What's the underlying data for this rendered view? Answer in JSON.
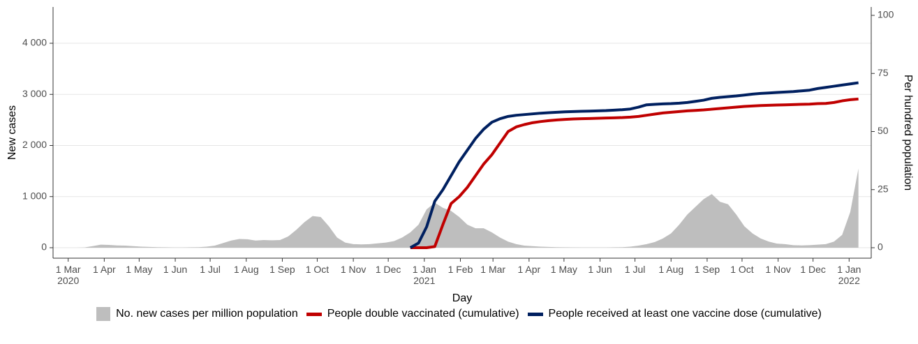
{
  "chart_data": {
    "type": "area-line",
    "x_label": "Day",
    "y_label": "New cases",
    "y2_label": "Per hundred population",
    "x": [
      "2020-03-01",
      "2020-03-08",
      "2020-03-15",
      "2020-03-22",
      "2020-03-29",
      "2020-04-05",
      "2020-04-12",
      "2020-04-19",
      "2020-04-26",
      "2020-05-03",
      "2020-05-10",
      "2020-05-17",
      "2020-05-24",
      "2020-05-31",
      "2020-06-07",
      "2020-06-14",
      "2020-06-21",
      "2020-06-28",
      "2020-07-05",
      "2020-07-12",
      "2020-07-19",
      "2020-07-26",
      "2020-08-02",
      "2020-08-09",
      "2020-08-16",
      "2020-08-23",
      "2020-08-30",
      "2020-09-06",
      "2020-09-13",
      "2020-09-20",
      "2020-09-27",
      "2020-10-04",
      "2020-10-11",
      "2020-10-18",
      "2020-10-25",
      "2020-11-01",
      "2020-11-08",
      "2020-11-15",
      "2020-11-22",
      "2020-11-29",
      "2020-12-06",
      "2020-12-13",
      "2020-12-20",
      "2020-12-27",
      "2021-01-03",
      "2021-01-10",
      "2021-01-17",
      "2021-01-24",
      "2021-01-31",
      "2021-02-07",
      "2021-02-14",
      "2021-02-21",
      "2021-02-28",
      "2021-03-07",
      "2021-03-14",
      "2021-03-21",
      "2021-03-28",
      "2021-04-04",
      "2021-04-11",
      "2021-04-18",
      "2021-04-25",
      "2021-05-02",
      "2021-05-09",
      "2021-05-16",
      "2021-05-23",
      "2021-05-30",
      "2021-06-06",
      "2021-06-13",
      "2021-06-20",
      "2021-06-27",
      "2021-07-04",
      "2021-07-11",
      "2021-07-18",
      "2021-07-25",
      "2021-08-01",
      "2021-08-08",
      "2021-08-15",
      "2021-08-22",
      "2021-08-29",
      "2021-09-05",
      "2021-09-12",
      "2021-09-19",
      "2021-09-26",
      "2021-10-03",
      "2021-10-10",
      "2021-10-17",
      "2021-10-24",
      "2021-10-31",
      "2021-11-07",
      "2021-11-14",
      "2021-11-21",
      "2021-11-28",
      "2021-12-05",
      "2021-12-12",
      "2021-12-19",
      "2021-12-26",
      "2022-01-02",
      "2022-01-09"
    ],
    "series": [
      {
        "name": "No. new cases per million population",
        "color": "#bebebe",
        "kind": "area",
        "values": [
          0,
          0,
          5,
          30,
          60,
          55,
          45,
          40,
          30,
          20,
          15,
          10,
          8,
          5,
          5,
          8,
          10,
          20,
          40,
          90,
          140,
          170,
          165,
          140,
          150,
          145,
          150,
          220,
          350,
          500,
          620,
          600,
          420,
          200,
          100,
          70,
          65,
          70,
          85,
          100,
          130,
          200,
          300,
          450,
          750,
          880,
          780,
          720,
          600,
          450,
          380,
          380,
          300,
          200,
          120,
          70,
          40,
          30,
          20,
          15,
          10,
          8,
          6,
          5,
          5,
          5,
          5,
          8,
          10,
          20,
          40,
          70,
          110,
          180,
          280,
          450,
          650,
          800,
          950,
          1050,
          900,
          850,
          650,
          420,
          280,
          180,
          120,
          80,
          70,
          50,
          45,
          50,
          60,
          70,
          120,
          250,
          700,
          1550
        ]
      },
      {
        "name": "People double vaccinated (cumulative)",
        "color": "#c00000",
        "kind": "line",
        "axis": "y2",
        "values": [
          null,
          null,
          null,
          null,
          null,
          null,
          null,
          null,
          null,
          null,
          null,
          null,
          null,
          null,
          null,
          null,
          null,
          null,
          null,
          null,
          null,
          null,
          null,
          null,
          null,
          null,
          null,
          null,
          null,
          null,
          null,
          null,
          null,
          null,
          null,
          null,
          null,
          null,
          null,
          null,
          null,
          null,
          0,
          0,
          0,
          0.5,
          10,
          19,
          22,
          26,
          31,
          36,
          40,
          45,
          50,
          52,
          53,
          53.8,
          54.3,
          54.7,
          55,
          55.2,
          55.4,
          55.5,
          55.6,
          55.7,
          55.8,
          55.9,
          56,
          56.2,
          56.5,
          57,
          57.5,
          58,
          58.3,
          58.6,
          58.9,
          59.1,
          59.3,
          59.6,
          59.9,
          60.2,
          60.5,
          60.8,
          61,
          61.2,
          61.3,
          61.4,
          61.5,
          61.6,
          61.7,
          61.8,
          62,
          62.1,
          62.5,
          63.2,
          63.7,
          64
        ]
      },
      {
        "name": "People received at least one vaccine dose (cumulative)",
        "color": "#002060",
        "kind": "line",
        "axis": "y2",
        "values": [
          null,
          null,
          null,
          null,
          null,
          null,
          null,
          null,
          null,
          null,
          null,
          null,
          null,
          null,
          null,
          null,
          null,
          null,
          null,
          null,
          null,
          null,
          null,
          null,
          null,
          null,
          null,
          null,
          null,
          null,
          null,
          null,
          null,
          null,
          null,
          null,
          null,
          null,
          null,
          null,
          null,
          null,
          0,
          2,
          9,
          20,
          25,
          31,
          37,
          42,
          47,
          51,
          54,
          55.5,
          56.5,
          57,
          57.3,
          57.6,
          57.9,
          58.1,
          58.3,
          58.5,
          58.6,
          58.7,
          58.8,
          58.9,
          59,
          59.2,
          59.4,
          59.7,
          60.5,
          61.5,
          61.7,
          61.9,
          62,
          62.2,
          62.5,
          63,
          63.5,
          64.3,
          64.7,
          65,
          65.3,
          65.7,
          66.1,
          66.4,
          66.6,
          66.8,
          67,
          67.2,
          67.5,
          67.8,
          68.5,
          69,
          69.5,
          70,
          70.5,
          71
        ]
      }
    ],
    "xlim": [
      "2020-02-17",
      "2022-01-20"
    ],
    "xticks": [
      {
        "value": "2020-03-01",
        "label": "1 Mar\n2020"
      },
      {
        "value": "2020-04-01",
        "label": "1 Apr"
      },
      {
        "value": "2020-05-01",
        "label": "1 May"
      },
      {
        "value": "2020-06-01",
        "label": "1 Jun"
      },
      {
        "value": "2020-07-01",
        "label": "1 Jul"
      },
      {
        "value": "2020-08-01",
        "label": "1 Aug"
      },
      {
        "value": "2020-09-01",
        "label": "1 Sep"
      },
      {
        "value": "2020-10-01",
        "label": "1 Oct"
      },
      {
        "value": "2020-11-01",
        "label": "1 Nov"
      },
      {
        "value": "2020-12-01",
        "label": "1 Dec"
      },
      {
        "value": "2021-01-01",
        "label": "1 Jan\n2021"
      },
      {
        "value": "2021-02-01",
        "label": "1 Feb"
      },
      {
        "value": "2021-03-01",
        "label": "1 Mar"
      },
      {
        "value": "2021-04-01",
        "label": "1 Apr"
      },
      {
        "value": "2021-05-01",
        "label": "1 May"
      },
      {
        "value": "2021-06-01",
        "label": "1 Jun"
      },
      {
        "value": "2021-07-01",
        "label": "1 Jul"
      },
      {
        "value": "2021-08-01",
        "label": "1 Aug"
      },
      {
        "value": "2021-09-01",
        "label": "1 Sep"
      },
      {
        "value": "2021-10-01",
        "label": "1 Oct"
      },
      {
        "value": "2021-11-01",
        "label": "1 Nov"
      },
      {
        "value": "2021-12-01",
        "label": "1 Dec"
      },
      {
        "value": "2022-01-01",
        "label": "1 Jan\n2022"
      }
    ],
    "ylim": [
      -205,
      4710
    ],
    "yticks": [
      0,
      {
        "value": 1000,
        "label": "1 000"
      },
      {
        "value": 2000,
        "label": "2 000"
      },
      {
        "value": 3000,
        "label": "3 000"
      },
      {
        "value": 4000,
        "label": "4 000"
      }
    ],
    "y2lim": [
      -4.5,
      103.6
    ],
    "y2ticks": [
      0,
      25,
      50,
      75,
      100
    ],
    "grid": true,
    "legend": "bottom"
  }
}
